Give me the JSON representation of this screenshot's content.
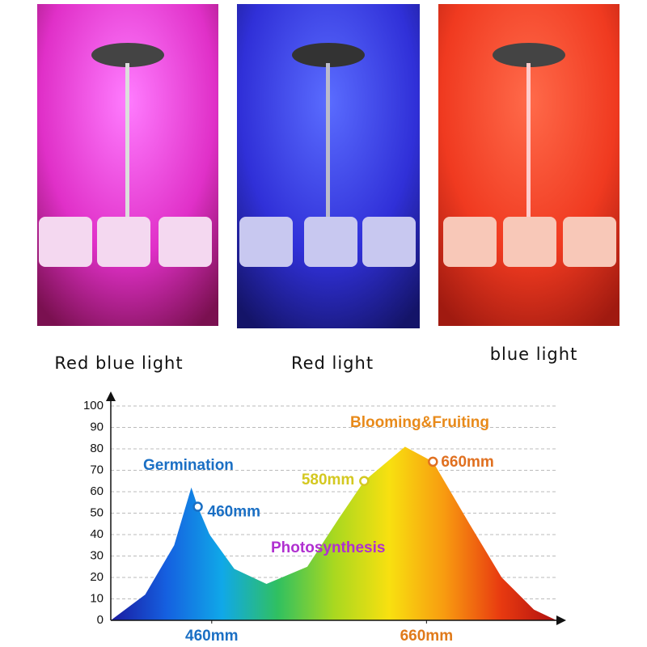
{
  "photos": [
    {
      "caption": "Red blue light"
    },
    {
      "caption": "Red light"
    },
    {
      "caption": "blue light"
    }
  ],
  "chart_data": {
    "type": "area",
    "x": [
      366,
      398,
      425,
      441,
      447,
      458,
      481,
      511,
      549,
      579,
      602,
      640,
      666,
      700,
      730,
      760,
      781
    ],
    "values": [
      0,
      12,
      35,
      62,
      53,
      40,
      24,
      17,
      25,
      48,
      65,
      81,
      74,
      45,
      20,
      5,
      0
    ],
    "xlim": [
      366,
      781
    ],
    "xticks": [
      {
        "value": 460,
        "label": "460mm"
      },
      {
        "value": 660,
        "label": "660mm"
      }
    ],
    "xtick_colors": [
      "#1a6fc4",
      "#e07a1a"
    ],
    "ylim": [
      0,
      100
    ],
    "yticks": [
      0,
      10,
      20,
      30,
      40,
      50,
      60,
      70,
      80,
      90,
      100
    ],
    "grid": true,
    "gradient": [
      "#1a1aa0",
      "#1560e0",
      "#10a8e8",
      "#30c060",
      "#a8d820",
      "#f8e010",
      "#f89a10",
      "#e83a10",
      "#b01010"
    ],
    "labels": [
      {
        "text": "Germination",
        "color": "#1a6fc4"
      },
      {
        "text": "Blooming&Fruiting",
        "color": "#e88a1a"
      },
      {
        "text": "Photosynthesis",
        "color": "#b030d0"
      }
    ],
    "markers": [
      {
        "text": "460mm",
        "x": 447,
        "y": 53,
        "color": "#1a6fc4"
      },
      {
        "text": "580mm",
        "x": 602,
        "y": 65,
        "color": "#d4c820"
      },
      {
        "text": "660mm",
        "x": 666,
        "y": 74,
        "color": "#e07020"
      }
    ]
  }
}
